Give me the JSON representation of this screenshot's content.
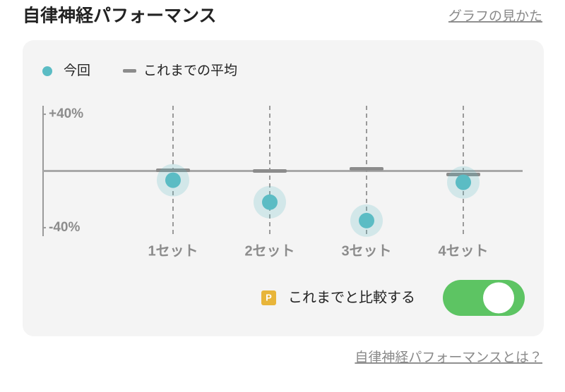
{
  "header": {
    "title": "自律神経パフォーマンス",
    "help_link": "グラフの見かた"
  },
  "chart_data": {
    "type": "dot",
    "categories": [
      "1セット",
      "2セット",
      "3セット",
      "4セット"
    ],
    "series": [
      {
        "name": "今回",
        "color": "#5bbcc4",
        "values": [
          -6.5,
          -22,
          -35,
          -8
        ]
      },
      {
        "name": "これまでの平均",
        "color": "#8c8c8c",
        "values": [
          0.5,
          0,
          1.5,
          -2.5
        ]
      }
    ],
    "ylim": [
      -46,
      46
    ],
    "yticks": [
      {
        "value": 40,
        "label": "+40%"
      },
      {
        "value": -40,
        "label": "-40%"
      }
    ]
  },
  "compare_toggle": {
    "badge": "P",
    "label": "これまでと比較する",
    "on": true
  },
  "footer": {
    "link": "自律神経パフォーマンスとは？"
  }
}
